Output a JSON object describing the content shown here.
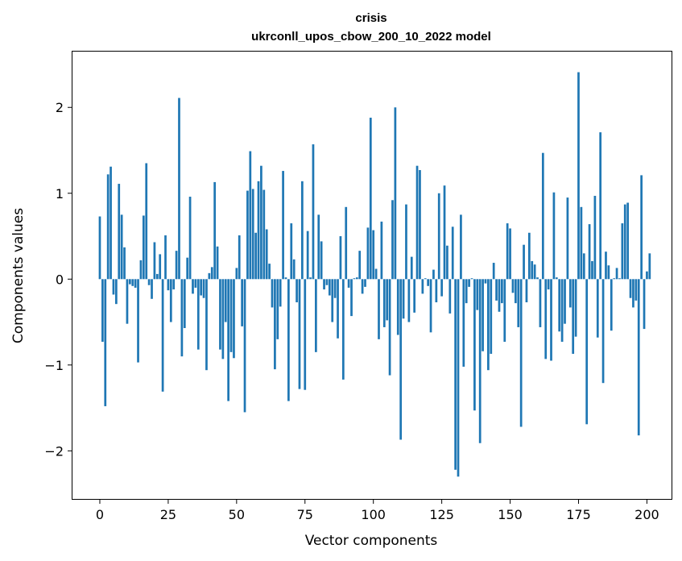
{
  "chart_data": {
    "type": "bar",
    "title": "crisis",
    "subtitle": "ukrconll_upos_cbow_200_10_2022 model",
    "xlabel": "Vector components",
    "ylabel": "Components values",
    "xlim": [
      -10,
      209
    ],
    "ylim": [
      -2.56,
      2.65
    ],
    "x_ticks": [
      0,
      25,
      50,
      75,
      100,
      125,
      150,
      175,
      200
    ],
    "y_ticks": [
      -2,
      -1,
      0,
      1,
      2
    ],
    "y_tick_labels": [
      "−2",
      "−1",
      "0",
      "1",
      "2"
    ],
    "grid": false,
    "legend": "none",
    "bar_color": "#1f77b4",
    "series": [
      {
        "values": [
          0.73,
          -0.73,
          -1.48,
          1.22,
          1.31,
          -0.18,
          -0.29,
          1.11,
          0.75,
          0.37,
          -0.52,
          -0.06,
          -0.08,
          -0.1,
          -0.97,
          0.22,
          0.74,
          1.35,
          -0.07,
          -0.23,
          0.43,
          0.06,
          0.29,
          -1.31,
          0.51,
          -0.13,
          -0.5,
          -0.12,
          0.33,
          2.11,
          -0.9,
          -0.57,
          0.25,
          0.96,
          -0.17,
          -0.1,
          -0.82,
          -0.19,
          -0.22,
          -1.06,
          0.07,
          0.14,
          1.13,
          0.38,
          -0.82,
          -0.93,
          -0.5,
          -1.42,
          -0.85,
          -0.92,
          0.13,
          0.51,
          -0.55,
          -1.55,
          1.03,
          1.49,
          1.05,
          0.54,
          1.14,
          1.32,
          1.04,
          0.58,
          0.18,
          -0.33,
          -1.05,
          -0.7,
          -0.32,
          1.26,
          0.02,
          -1.42,
          0.65,
          0.23,
          -0.27,
          -1.28,
          1.14,
          -1.29,
          0.56,
          0.02,
          1.57,
          -0.85,
          0.75,
          0.44,
          -0.12,
          -0.07,
          -0.19,
          -0.5,
          -0.22,
          -0.69,
          0.5,
          -1.17,
          0.84,
          -0.1,
          -0.43,
          0.01,
          0.02,
          0.33,
          -0.17,
          -0.09,
          0.6,
          1.88,
          0.57,
          0.12,
          -0.7,
          0.67,
          -0.56,
          -0.48,
          -1.12,
          0.92,
          2.0,
          -0.65,
          -1.87,
          -0.46,
          0.87,
          -0.5,
          0.26,
          -0.39,
          1.32,
          1.27,
          -0.17,
          0.01,
          -0.08,
          -0.62,
          0.11,
          -0.27,
          1.0,
          -0.2,
          1.09,
          0.39,
          -0.4,
          0.61,
          -2.22,
          -2.3,
          0.75,
          -1.02,
          -0.28,
          -0.09,
          0.01,
          -1.53,
          -0.36,
          -1.91,
          -0.84,
          -0.05,
          -1.06,
          -0.87,
          0.19,
          -0.25,
          -0.38,
          -0.28,
          -0.73,
          0.65,
          0.59,
          -0.16,
          -0.28,
          -0.56,
          -1.72,
          0.4,
          -0.27,
          0.54,
          0.21,
          0.17,
          0.02,
          -0.56,
          1.47,
          -0.93,
          -0.12,
          -0.95,
          1.01,
          0.02,
          -0.61,
          -0.73,
          -0.52,
          0.95,
          -0.33,
          -0.87,
          -0.67,
          2.41,
          0.84,
          0.3,
          -1.69,
          0.64,
          0.21,
          0.97,
          -0.68,
          1.71,
          -1.21,
          0.32,
          0.16,
          -0.6,
          0.01,
          0.13,
          0.01,
          0.65,
          0.87,
          0.89,
          -0.22,
          -0.33,
          -0.25,
          -1.82,
          1.21,
          -0.58,
          0.09,
          0.3
        ]
      }
    ]
  }
}
